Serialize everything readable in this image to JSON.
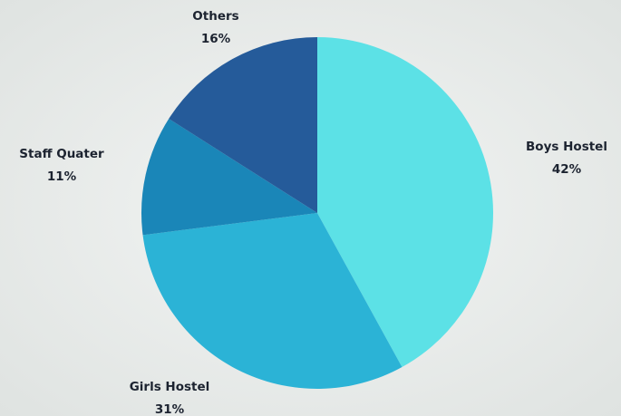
{
  "chart_data": {
    "type": "pie",
    "categories": [
      "Boys Hostel",
      "Girls Hostel",
      "Staff Quater",
      "Others"
    ],
    "values": [
      42,
      31,
      11,
      16
    ],
    "value_labels": [
      "42%",
      "31%",
      "11%",
      "16%"
    ],
    "colors": [
      "#5ce1e6",
      "#2bb3d6",
      "#1a86b8",
      "#255b9a"
    ]
  }
}
